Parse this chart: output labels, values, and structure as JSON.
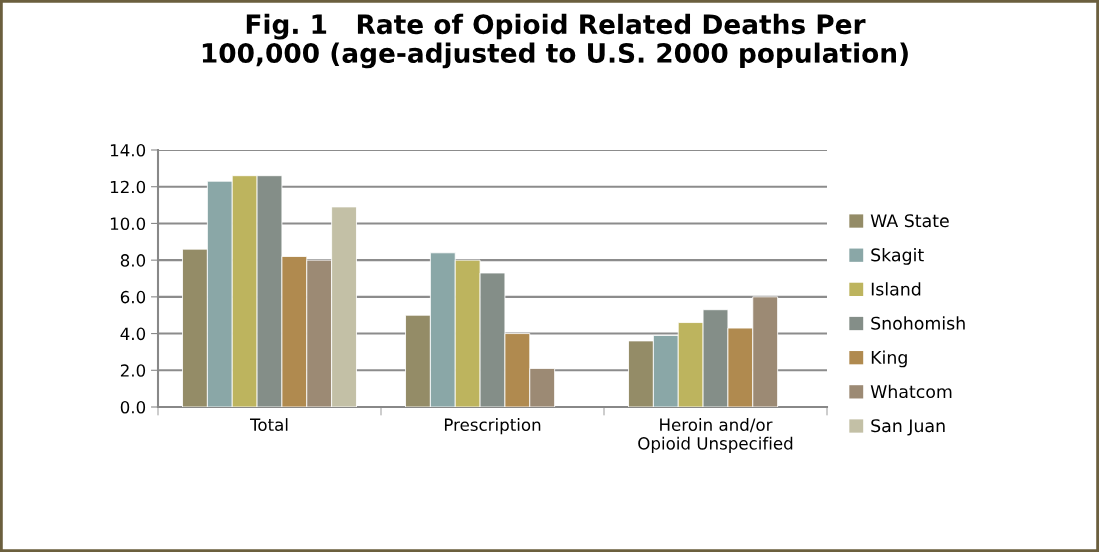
{
  "chart_data": {
    "type": "bar",
    "title": "Fig. 1   Rate of Opioid Related Deaths Per\n100,000 (age-adjusted to U.S. 2000 population)",
    "categories": [
      "Total",
      "Prescription",
      "Heroin and/or\nOpioid Unspecified"
    ],
    "series": [
      {
        "name": "WA State",
        "color": "#948c67",
        "values": [
          8.6,
          5.0,
          3.6
        ]
      },
      {
        "name": "Skagit",
        "color": "#8aa7a7",
        "values": [
          12.3,
          8.4,
          3.9
        ]
      },
      {
        "name": "Island",
        "color": "#bdb45e",
        "values": [
          12.6,
          8.0,
          4.6
        ]
      },
      {
        "name": "Snohomish",
        "color": "#848e88",
        "values": [
          12.6,
          7.3,
          5.3
        ]
      },
      {
        "name": "King",
        "color": "#b08a4f",
        "values": [
          8.2,
          4.0,
          4.3
        ]
      },
      {
        "name": "Whatcom",
        "color": "#9c8a74",
        "values": [
          8.0,
          2.1,
          6.0
        ]
      },
      {
        "name": "San Juan",
        "color": "#c3c0a6",
        "values": [
          10.9,
          null,
          null
        ]
      }
    ],
    "ylim": [
      0,
      14
    ],
    "yticks": [
      {
        "value": 0,
        "label": "0.0"
      },
      {
        "value": 2,
        "label": "2.0"
      },
      {
        "value": 4,
        "label": "4.0"
      },
      {
        "value": 6,
        "label": "6.0"
      },
      {
        "value": 8,
        "label": "8.0"
      },
      {
        "value": 10,
        "label": "10.0"
      },
      {
        "value": 12,
        "label": "12.0"
      },
      {
        "value": 14,
        "label": "14.0"
      }
    ],
    "grid": "y",
    "legend": "right"
  }
}
